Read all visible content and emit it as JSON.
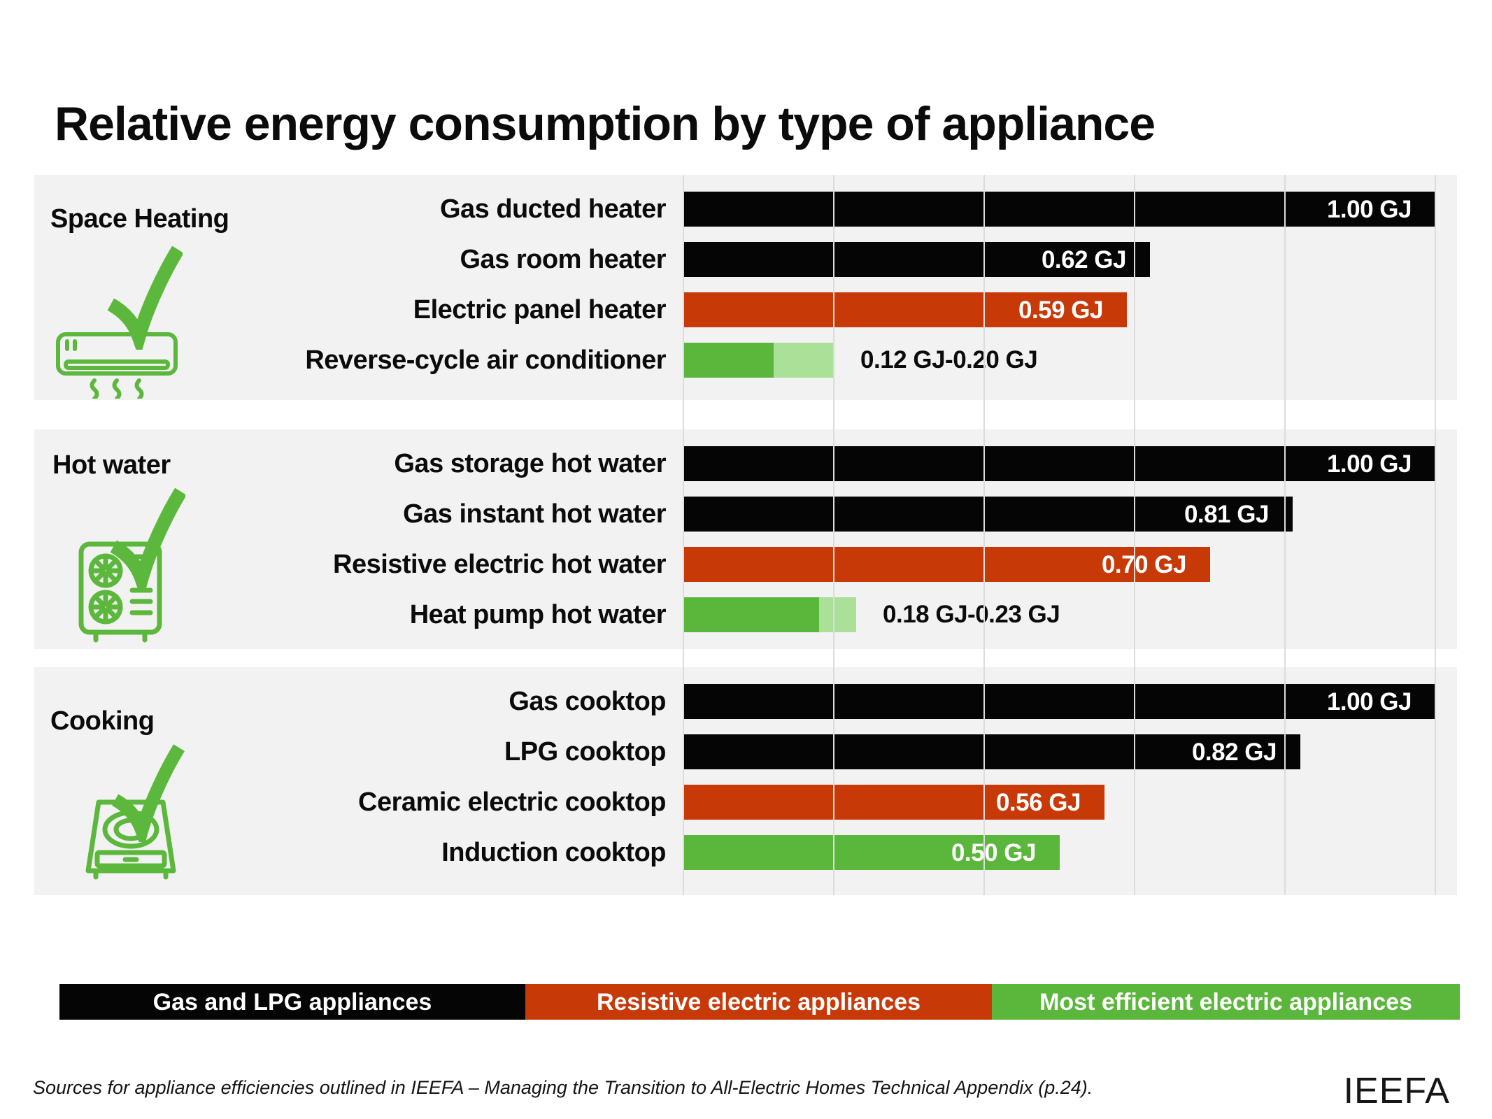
{
  "title": "Relative energy consumption by type of appliance",
  "legend": [
    {
      "label": "Gas and LPG appliances",
      "color": "#050505",
      "text_color": "#ffffff"
    },
    {
      "label": "Resistive electric appliances",
      "color": "#C83908",
      "text_color": "#ffffff"
    },
    {
      "label": "Most efficient electric appliances",
      "color": "#5BB73B",
      "text_color": "#ffffff"
    }
  ],
  "footer": {
    "source": "Sources for appliance efficiencies outlined in IEEFA – Managing the Transition to All-Electric Homes Technical Appendix (p.24).",
    "brand": "IEEFA"
  },
  "colors": {
    "gas": "#050505",
    "resistive": "#C83908",
    "efficient": "#5BB73B",
    "efficient_light": "#ABE098",
    "icon_green": "#5CB83C",
    "panel_bg": "#F2F2F2",
    "gridline": "#DCDCDC",
    "text": "#0B0B0B",
    "value_text": "#FFFFFF"
  },
  "chart_data": {
    "type": "bar",
    "orientation": "horizontal",
    "unit": "GJ",
    "xlim": [
      0,
      1.0
    ],
    "gridline_interval": 0.2,
    "grid": true,
    "legend_position": "bottom",
    "groups": [
      {
        "category": "Space Heating",
        "icon": "air-conditioner-icon",
        "bars": [
          {
            "label": "Gas ducted heater",
            "series": "gas",
            "value": 1.0,
            "value_label": "1.00 GJ"
          },
          {
            "label": "Gas room heater",
            "series": "gas",
            "value": 0.62,
            "value_label": "0.62 GJ"
          },
          {
            "label": "Electric panel heater",
            "series": "resistive",
            "value": 0.59,
            "value_label": "0.59 GJ"
          },
          {
            "label": "Reverse-cycle air conditioner",
            "series": "efficient",
            "value_min": 0.12,
            "value_max": 0.2,
            "value_label": "0.12 GJ-0.20 GJ"
          }
        ]
      },
      {
        "category": "Hot water",
        "icon": "heat-pump-icon",
        "bars": [
          {
            "label": "Gas storage hot water",
            "series": "gas",
            "value": 1.0,
            "value_label": "1.00 GJ"
          },
          {
            "label": "Gas instant hot water",
            "series": "gas",
            "value": 0.81,
            "value_label": "0.81 GJ"
          },
          {
            "label": "Resistive electric hot water",
            "series": "resistive",
            "value": 0.7,
            "value_label": "0.70 GJ"
          },
          {
            "label": "Heat pump hot water",
            "series": "efficient",
            "value_min": 0.18,
            "value_max": 0.23,
            "value_label": "0.18 GJ-0.23 GJ"
          }
        ]
      },
      {
        "category": "Cooking",
        "icon": "induction-cooktop-icon",
        "bars": [
          {
            "label": "Gas cooktop",
            "series": "gas",
            "value": 1.0,
            "value_label": "1.00 GJ"
          },
          {
            "label": "LPG cooktop",
            "series": "gas",
            "value": 0.82,
            "value_label": "0.82 GJ"
          },
          {
            "label": "Ceramic electric cooktop",
            "series": "resistive",
            "value": 0.56,
            "value_label": "0.56 GJ"
          },
          {
            "label": "Induction cooktop",
            "series": "efficient",
            "value": 0.5,
            "value_label": "0.50 GJ"
          }
        ]
      }
    ],
    "series_legend": {
      "gas": "Gas and LPG appliances",
      "resistive": "Resistive electric appliances",
      "efficient": "Most efficient electric appliances"
    }
  }
}
